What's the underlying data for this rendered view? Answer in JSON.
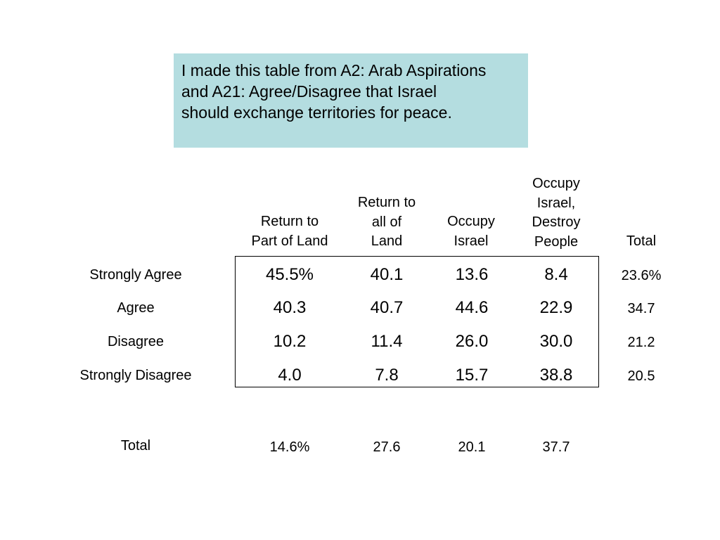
{
  "note": {
    "lines": [
      "I made this table from A2: Arab Aspirations",
      "and A21: Agree/Disagree that Israel",
      "should exchange territories for peace."
    ]
  },
  "table": {
    "columns": [
      {
        "lines": [
          "Return to",
          "Part of Land"
        ]
      },
      {
        "lines": [
          "Return to",
          "all of",
          "Land"
        ]
      },
      {
        "lines": [
          "Occupy",
          "Israel"
        ]
      },
      {
        "lines": [
          "Occupy",
          "Israel,",
          "Destroy",
          "People"
        ]
      }
    ],
    "total_header": "Total",
    "rows": [
      {
        "label": "Strongly Agree",
        "values": [
          "45.5%",
          "40.1",
          "13.6",
          "8.4"
        ],
        "total": "23.6%"
      },
      {
        "label": "Agree",
        "values": [
          "40.3",
          "40.7",
          "44.6",
          "22.9"
        ],
        "total": "34.7"
      },
      {
        "label": "Disagree",
        "values": [
          "10.2",
          "11.4",
          "26.0",
          "30.0"
        ],
        "total": "21.2"
      },
      {
        "label": "Strongly Disagree",
        "values": [
          "4.0",
          "7.8",
          "15.7",
          "38.8"
        ],
        "total": "20.5"
      }
    ],
    "total_row": {
      "label": "Total",
      "values": [
        "14.6%",
        "27.6",
        "20.1",
        "37.7"
      ]
    }
  }
}
